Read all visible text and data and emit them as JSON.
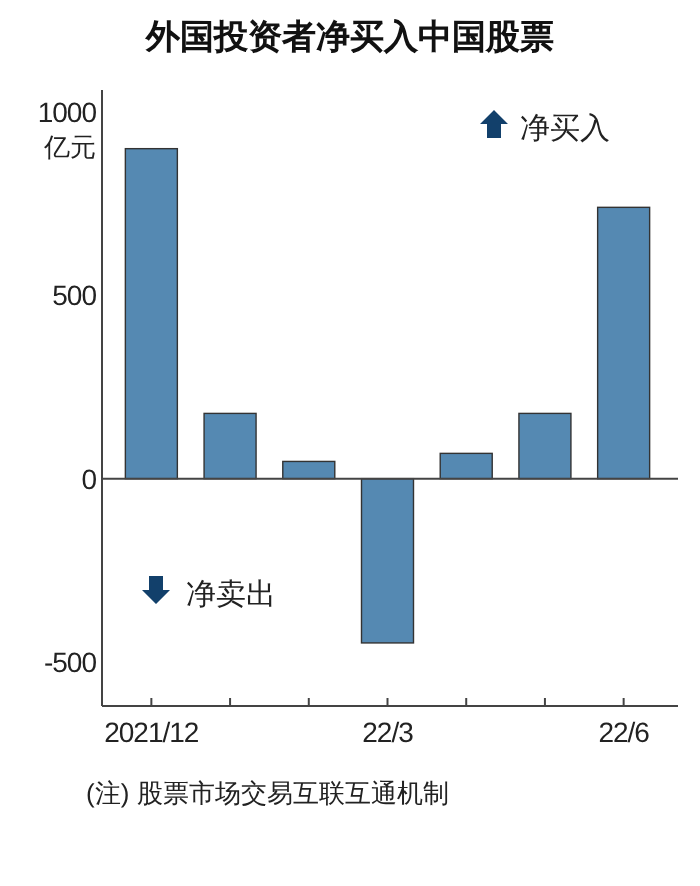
{
  "chart_data": {
    "type": "bar",
    "title": "外国投资者净买入中国股票",
    "ylabel": "亿元",
    "categories": [
      "2021/12",
      null,
      null,
      "22/3",
      null,
      null,
      "22/6"
    ],
    "values": [
      900,
      178,
      47,
      -448,
      69,
      178,
      740
    ],
    "color": "#5589b2",
    "ylim": [
      -620,
      1060
    ],
    "yticks": [
      -500,
      0,
      500,
      1000
    ],
    "ref_lines": [
      {
        "axis": "y",
        "value": 0,
        "color": "#444444"
      }
    ],
    "annotations": [
      "净买入",
      "净卖出",
      "(注) 股票市场交易互联互通机制"
    ]
  }
}
